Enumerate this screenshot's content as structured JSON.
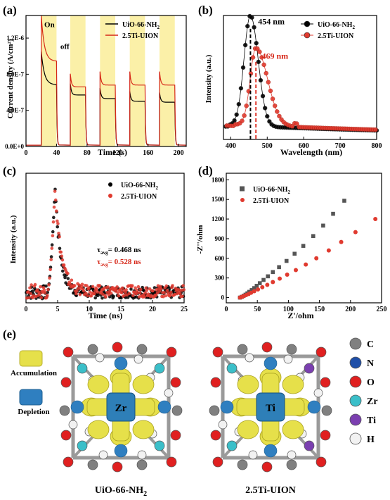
{
  "charts": [
    {
      "id": "a",
      "panel_label": "(a)",
      "type": "line",
      "xlabel": "Time (s)",
      "ylabel": "Current density (A/cm²)",
      "xlim": [
        0,
        210
      ],
      "ylim": [
        0,
        1.45e-06
      ],
      "x_ticks": [
        0,
        40,
        80,
        120,
        160,
        200
      ],
      "x_tick_labels": [
        "0",
        "40",
        "80",
        "120",
        "160",
        "200"
      ],
      "y_ticks": [
        0,
        4e-07,
        8e-07,
        1.2e-06
      ],
      "y_tick_labels": [
        "0.0E+0",
        "4.0E-7",
        "8.0E-7",
        "1.2E-6"
      ],
      "annotations": [
        {
          "text": "On",
          "x": 24,
          "y": 1.32e-06
        },
        {
          "text": "off",
          "x": 45,
          "y": 1.08e-06
        }
      ],
      "light_on_intervals": [
        [
          20,
          40
        ],
        [
          58,
          78
        ],
        [
          97,
          117
        ],
        [
          136,
          156
        ],
        [
          175,
          195
        ]
      ],
      "series": [
        {
          "name": "UiO-66-NH2",
          "color": "#000000",
          "on_levels": [
            1.05e-06,
            5.7e-07,
            5.3e-07,
            5e-07,
            4.9e-07
          ]
        },
        {
          "name": "2.5Ti-UION",
          "color": "#d62718",
          "on_levels": [
            1.45e-06,
            6.6e-07,
            6.8e-07,
            6.8e-07,
            6.8e-07
          ]
        }
      ],
      "dark_level": 1.5e-08
    },
    {
      "id": "b",
      "panel_label": "(b)",
      "type": "scatter",
      "xlabel": "Wavelength (nm)",
      "ylabel": "Intensity (a.u.)",
      "xlim": [
        380,
        800
      ],
      "x_ticks": [
        400,
        500,
        600,
        700,
        800
      ],
      "x_tick_labels": [
        "400",
        "500",
        "600",
        "700",
        "800"
      ],
      "ylim": [
        0,
        1.12
      ],
      "annotations": [
        {
          "text": "454 nm",
          "x": 475,
          "y": 1.04,
          "color": "#000000"
        },
        {
          "text": "469 nm",
          "x": 485,
          "y": 0.73,
          "color": "#d62718"
        }
      ],
      "peaks": [
        454,
        469
      ],
      "series": [
        {
          "name": "UiO-66-NH2",
          "color": "#000000",
          "peak_x": 454,
          "peak_y": 1.0,
          "width_l": 25,
          "width_r": 30,
          "tail": 0.13
        },
        {
          "name": "2.5Ti-UION",
          "color": "#e03a2f",
          "peak_x": 469,
          "peak_y": 0.7,
          "width_l": 22,
          "width_r": 45,
          "tail": 0.14
        }
      ]
    },
    {
      "id": "c",
      "panel_label": "(c)",
      "type": "scatter",
      "xlabel": "Time (ns)",
      "ylabel": "Intensity (a.u.)",
      "xlim": [
        0,
        25
      ],
      "x_ticks": [
        0,
        5,
        10,
        15,
        20,
        25
      ],
      "x_tick_labels": [
        "0",
        "5",
        "10",
        "15",
        "20",
        "25"
      ],
      "ylim": [
        0,
        1.12
      ],
      "annotation_1_value": "0.468 ns",
      "annotation_2_value": "0.528 ns",
      "series": [
        {
          "name": "UiO-66-NH2",
          "color": "#000000",
          "peak_x": 4.6,
          "tau": 0.85,
          "base": 0.09
        },
        {
          "name": "2.5Ti-UION",
          "color": "#e03a2f",
          "peak_x": 4.6,
          "tau": 0.95,
          "base": 0.1
        }
      ]
    },
    {
      "id": "d",
      "panel_label": "(d)",
      "type": "scatter",
      "xlabel": "Z'/ohm",
      "ylabel": "-Z''/ohm",
      "xlim": [
        0,
        250
      ],
      "ylim": [
        -80,
        1900
      ],
      "x_ticks": [
        0,
        50,
        100,
        150,
        200,
        250
      ],
      "x_tick_labels": [
        "0",
        "50",
        "100",
        "150",
        "200",
        "250"
      ],
      "y_ticks": [
        0,
        300,
        600,
        900,
        1200,
        1500,
        1800
      ],
      "y_tick_labels": [
        "0",
        "300",
        "600",
        "900",
        "1200",
        "1500",
        "1800"
      ],
      "series": [
        {
          "name": "UiO-66-NH2",
          "color": "#555555",
          "marker": "square",
          "x": [
            22,
            25,
            28,
            31,
            34,
            37,
            41,
            45,
            49,
            54,
            60,
            67,
            75,
            85,
            97,
            110,
            124,
            140,
            156,
            172,
            190
          ],
          "y": [
            0,
            12,
            28,
            45,
            65,
            88,
            115,
            145,
            180,
            220,
            270,
            325,
            390,
            465,
            560,
            670,
            790,
            940,
            1100,
            1280,
            1480
          ]
        },
        {
          "name": "2.5Ti-UION",
          "color": "#e03a2f",
          "marker": "circle",
          "x": [
            22,
            25,
            28,
            32,
            36,
            40,
            45,
            51,
            58,
            66,
            75,
            86,
            98,
            112,
            128,
            145,
            165,
            185,
            208,
            240
          ],
          "y": [
            0,
            10,
            22,
            38,
            55,
            74,
            98,
            125,
            158,
            195,
            238,
            290,
            350,
            420,
            505,
            600,
            720,
            850,
            1000,
            1200
          ]
        }
      ]
    }
  ],
  "panel_e": {
    "panel_label": "(e)",
    "legend_accumulation": "Accumulation",
    "legend_depletion": "Depletion",
    "structures": [
      {
        "caption": "UiO-66-NH",
        "caption_sub": "2",
        "center_label": "Zr",
        "center_color": "#2e7fb8"
      },
      {
        "caption": "2.5Ti-UION",
        "caption_sub": "",
        "center_label": "Ti",
        "center_color": "#2e7fb8"
      }
    ],
    "atoms": [
      {
        "label": "C",
        "color": "#808080"
      },
      {
        "label": "N",
        "color": "#1f4fa8"
      },
      {
        "label": "O",
        "color": "#e02020"
      },
      {
        "label": "Zr",
        "color": "#3bbfc9"
      },
      {
        "label": "Ti",
        "color": "#7b3fb0"
      },
      {
        "label": "H",
        "color": "#f2f2f2"
      }
    ],
    "colors": {
      "accumulation": "#e6e04a",
      "depletion": "#2f7fc0"
    }
  }
}
